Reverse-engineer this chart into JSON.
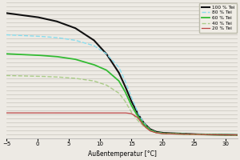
{
  "xlabel": "Außentemperatur [°C]",
  "xlim": [
    -5,
    32
  ],
  "xticks": [
    -5,
    0,
    5,
    10,
    15,
    20,
    25,
    30
  ],
  "ylim": [
    0,
    10
  ],
  "background_color": "#edeae4",
  "plot_bg_color": "#edeae4",
  "grid_color": "#c8c4bc",
  "num_hlines": 34,
  "series": [
    {
      "label": "100 % Tei",
      "color": "#111111",
      "linewidth": 1.5,
      "linestyle": "-",
      "points": [
        [
          -5,
          9.2
        ],
        [
          0,
          8.9
        ],
        [
          3,
          8.6
        ],
        [
          6,
          8.1
        ],
        [
          9,
          7.2
        ],
        [
          11,
          6.2
        ],
        [
          13,
          4.8
        ],
        [
          14,
          3.8
        ],
        [
          15,
          2.7
        ],
        [
          16,
          1.8
        ],
        [
          17,
          1.1
        ],
        [
          18,
          0.65
        ],
        [
          19,
          0.45
        ],
        [
          20,
          0.38
        ],
        [
          25,
          0.28
        ],
        [
          32,
          0.22
        ]
      ]
    },
    {
      "label": "80 % Tei",
      "color": "#88ddee",
      "linewidth": 1.0,
      "linestyle": "--",
      "points": [
        [
          -5,
          7.6
        ],
        [
          0,
          7.5
        ],
        [
          3,
          7.4
        ],
        [
          6,
          7.2
        ],
        [
          9,
          6.8
        ],
        [
          11,
          6.2
        ],
        [
          13,
          5.2
        ],
        [
          14,
          4.2
        ],
        [
          15,
          3.0
        ],
        [
          16,
          1.9
        ],
        [
          17,
          1.1
        ],
        [
          18,
          0.6
        ],
        [
          19,
          0.42
        ],
        [
          20,
          0.35
        ],
        [
          25,
          0.27
        ],
        [
          32,
          0.22
        ]
      ]
    },
    {
      "label": "60 % Tei",
      "color": "#33bb33",
      "linewidth": 1.3,
      "linestyle": "-",
      "points": [
        [
          -5,
          6.2
        ],
        [
          0,
          6.1
        ],
        [
          3,
          6.0
        ],
        [
          6,
          5.8
        ],
        [
          9,
          5.4
        ],
        [
          11,
          5.0
        ],
        [
          13,
          4.2
        ],
        [
          14,
          3.4
        ],
        [
          15,
          2.4
        ],
        [
          16,
          1.6
        ],
        [
          17,
          1.0
        ],
        [
          18,
          0.58
        ],
        [
          19,
          0.4
        ],
        [
          20,
          0.34
        ],
        [
          25,
          0.26
        ],
        [
          32,
          0.22
        ]
      ]
    },
    {
      "label": "40 % Tei",
      "color": "#aacc88",
      "linewidth": 1.0,
      "linestyle": "--",
      "points": [
        [
          -5,
          4.6
        ],
        [
          0,
          4.55
        ],
        [
          3,
          4.5
        ],
        [
          6,
          4.4
        ],
        [
          9,
          4.2
        ],
        [
          11,
          3.9
        ],
        [
          13,
          3.3
        ],
        [
          14,
          2.7
        ],
        [
          15,
          1.9
        ],
        [
          16,
          1.3
        ],
        [
          17,
          0.85
        ],
        [
          18,
          0.53
        ],
        [
          19,
          0.38
        ],
        [
          20,
          0.32
        ],
        [
          25,
          0.26
        ],
        [
          32,
          0.22
        ]
      ]
    },
    {
      "label": "20 % Tei",
      "color": "#bb4444",
      "linewidth": 0.9,
      "linestyle": "-",
      "points": [
        [
          -5,
          1.85
        ],
        [
          0,
          1.85
        ],
        [
          3,
          1.85
        ],
        [
          6,
          1.85
        ],
        [
          9,
          1.85
        ],
        [
          11,
          1.85
        ],
        [
          13,
          1.85
        ],
        [
          14,
          1.85
        ],
        [
          15,
          1.8
        ],
        [
          16,
          1.5
        ],
        [
          17,
          0.9
        ],
        [
          18,
          0.52
        ],
        [
          19,
          0.38
        ],
        [
          20,
          0.32
        ],
        [
          25,
          0.26
        ],
        [
          32,
          0.22
        ]
      ]
    }
  ]
}
